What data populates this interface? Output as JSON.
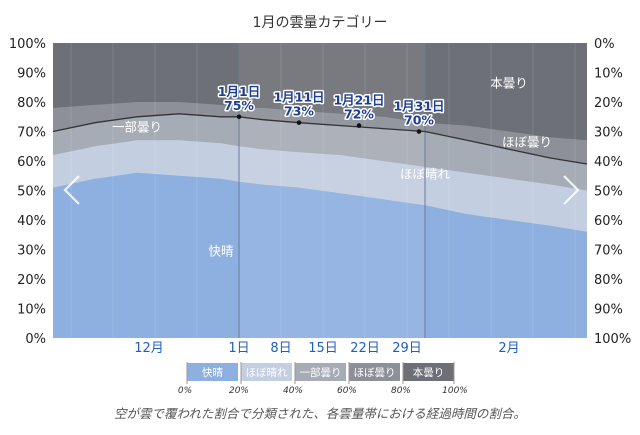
{
  "colors": {
    "clear": "#8eb0e0",
    "mostly_clear": "#c3cee0",
    "partly_cloudy": "#a6acb5",
    "mostly_cloudy": "#8d9098",
    "overcast": "#6e7077",
    "month_label": "#1d5fbf",
    "callout": "#1d3f8f",
    "median_line": "#333333"
  },
  "chart_data": {
    "type": "area",
    "title": "1月の雲量カテゴリー",
    "caption": "空が雲で覆われた割合で分類された、各雲量帯における経過時間の割合。",
    "ylim": [
      0,
      100
    ],
    "yticks_left": [
      "0%",
      "10%",
      "20%",
      "30%",
      "40%",
      "50%",
      "60%",
      "70%",
      "80%",
      "90%",
      "100%"
    ],
    "yticks_right": [
      "100%",
      "90%",
      "80%",
      "70%",
      "60%",
      "50%",
      "40%",
      "30%",
      "20%",
      "10%",
      "0%"
    ],
    "month_labels": [
      {
        "label": "12月",
        "day": -15
      },
      {
        "label": "1日",
        "day": 0
      },
      {
        "label": "8日",
        "day": 7
      },
      {
        "label": "15日",
        "day": 14
      },
      {
        "label": "22日",
        "day": 21
      },
      {
        "label": "29日",
        "day": 28
      },
      {
        "label": "2月",
        "day": 45
      }
    ],
    "x": [
      -31,
      -24,
      -17,
      -10,
      -3,
      0,
      4,
      10,
      17,
      24,
      31,
      38,
      45,
      52,
      58
    ],
    "series": [
      {
        "name": "快晴",
        "key": "clear",
        "values": [
          51,
          54,
          56,
          55,
          54,
          53,
          52,
          51,
          49,
          47,
          45,
          42,
          40,
          38,
          36
        ]
      },
      {
        "name": "ほぼ晴れ",
        "key": "mostly_clear",
        "values": [
          62,
          65,
          67,
          67,
          66,
          65,
          64,
          63,
          62,
          60,
          58,
          56,
          54,
          52,
          50
        ]
      },
      {
        "name": "一部曇り",
        "key": "partly_cloudy",
        "values": [
          70,
          73,
          75,
          76,
          75,
          75,
          74,
          73,
          72,
          71,
          70,
          67,
          64,
          61,
          59
        ]
      },
      {
        "name": "ほぼ曇り",
        "key": "mostly_cloudy",
        "values": [
          78,
          79,
          80,
          80,
          79,
          78,
          78,
          77,
          76,
          75,
          73,
          72,
          70,
          68,
          67
        ]
      },
      {
        "name": "本曇り",
        "key": "overcast",
        "values": [
          100,
          100,
          100,
          100,
          100,
          100,
          100,
          100,
          100,
          100,
          100,
          100,
          100,
          100,
          100
        ]
      }
    ],
    "band_labels": [
      {
        "text": "快晴",
        "day": -3,
        "y": 28
      },
      {
        "text": "ほぼ晴れ",
        "day": 31,
        "y": 54
      },
      {
        "text": "一部曇り",
        "day": -17,
        "y": 70
      },
      {
        "text": "ほぼ曇り",
        "day": 48,
        "y": 65
      },
      {
        "text": "本曇り",
        "day": 45,
        "y": 85
      }
    ],
    "callouts": [
      {
        "date": "1月1日",
        "value": "75%",
        "day": 0,
        "y": 75
      },
      {
        "date": "1月11日",
        "value": "73%",
        "day": 10,
        "y": 73
      },
      {
        "date": "1月21日",
        "value": "72%",
        "day": 20,
        "y": 72
      },
      {
        "date": "1月31日",
        "value": "70%",
        "day": 30,
        "y": 70
      }
    ],
    "highlight_range_days": [
      0,
      31
    ],
    "legend": [
      {
        "label": "快晴",
        "key": "clear"
      },
      {
        "label": "ほぼ晴れ",
        "key": "mostly_clear"
      },
      {
        "label": "一部曇り",
        "key": "partly_cloudy"
      },
      {
        "label": "ほぼ曇り",
        "key": "mostly_cloudy"
      },
      {
        "label": "本曇り",
        "key": "overcast"
      }
    ],
    "legend_ticks": [
      "0%",
      "20%",
      "40%",
      "60%",
      "80%",
      "100%"
    ]
  },
  "nav": {
    "prev_icon": "chevron-left-icon",
    "next_icon": "chevron-right-icon"
  }
}
